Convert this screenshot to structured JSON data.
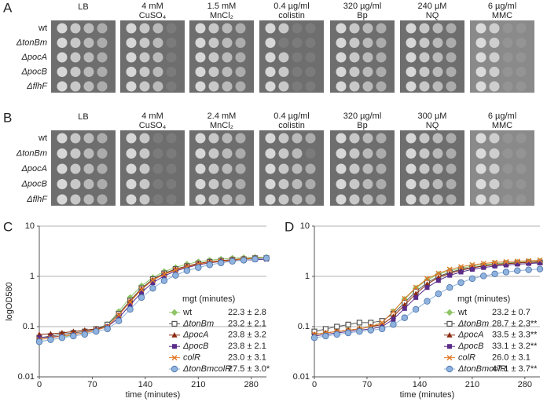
{
  "plates": [
    {
      "panel": "A",
      "columns": [
        [
          "LB"
        ],
        [
          "4 mM",
          "CuSO₄"
        ],
        [
          "1.5 mM",
          "MnCl₂"
        ],
        [
          "0.4 µg/ml",
          "colistin"
        ],
        [
          "320 µg/ml",
          "Bp"
        ],
        [
          "240 µM",
          "NQ"
        ],
        [
          "6 µg/ml",
          "MMC"
        ]
      ],
      "rows": [
        "wt",
        "ΔtonBm",
        "ΔpocA",
        "ΔpocB",
        "ΔflhF"
      ]
    },
    {
      "panel": "B",
      "columns": [
        [
          "LB"
        ],
        [
          "4 mM",
          "CuSO₄"
        ],
        [
          "2.4 mM",
          "MnCl₂"
        ],
        [
          "0.4 µg/ml",
          "colistin"
        ],
        [
          "320 µg/ml",
          "Bp"
        ],
        [
          "300 µM",
          "NQ"
        ],
        [
          "6 µg/ml",
          "MMC"
        ]
      ],
      "rows": [
        "wt",
        "ΔtonBm",
        "ΔpocA",
        "ΔpocB",
        "ΔflhF"
      ]
    }
  ],
  "chart_data": [
    {
      "type": "line",
      "panel": "C",
      "ylabel": "logOD580",
      "xlabel": "time (minutes)",
      "legend_title": "mgt (minutes)",
      "log_y": true,
      "grid": true,
      "xlim": [
        0,
        300
      ],
      "xticks": [
        0,
        70,
        140,
        210,
        280
      ],
      "ylim": [
        0.01,
        10
      ],
      "yticks": [
        0.01,
        0.1,
        1,
        10
      ],
      "x": [
        0,
        15,
        30,
        45,
        60,
        75,
        90,
        105,
        120,
        135,
        150,
        165,
        180,
        195,
        210,
        225,
        240,
        255,
        270,
        285,
        300
      ],
      "series": [
        {
          "name": "wt",
          "mgt": "22.3 ± 2.8",
          "color": "#8fc465",
          "marker": "diamond",
          "values": [
            0.05,
            0.055,
            0.06,
            0.07,
            0.075,
            0.085,
            0.11,
            0.2,
            0.38,
            0.65,
            0.95,
            1.25,
            1.5,
            1.75,
            1.95,
            2.1,
            2.2,
            2.3,
            2.35,
            2.4,
            2.4
          ]
        },
        {
          "name": "ΔtonBm",
          "mgt": "23.2 ± 2.1",
          "color": "#555555",
          "marker": "square-open",
          "values": [
            0.06,
            0.065,
            0.07,
            0.075,
            0.08,
            0.09,
            0.11,
            0.18,
            0.33,
            0.58,
            0.88,
            1.15,
            1.4,
            1.6,
            1.8,
            1.95,
            2.05,
            2.15,
            2.2,
            2.3,
            2.3
          ]
        },
        {
          "name": "ΔpocA",
          "mgt": "23.8 ± 3.2",
          "color": "#8b2a0e",
          "marker": "triangle",
          "values": [
            0.07,
            0.072,
            0.075,
            0.08,
            0.085,
            0.09,
            0.1,
            0.17,
            0.32,
            0.56,
            0.85,
            1.12,
            1.38,
            1.6,
            1.8,
            1.95,
            2.05,
            2.15,
            2.25,
            2.3,
            2.3
          ]
        },
        {
          "name": "ΔpocB",
          "mgt": "23.8 ± 2.1",
          "color": "#5b2c8a",
          "marker": "square",
          "values": [
            0.06,
            0.062,
            0.065,
            0.07,
            0.075,
            0.085,
            0.1,
            0.15,
            0.27,
            0.48,
            0.75,
            1.02,
            1.28,
            1.5,
            1.7,
            1.85,
            1.98,
            2.05,
            2.1,
            2.15,
            2.2
          ]
        },
        {
          "name": "colR",
          "mgt": "23.0 ± 3.1",
          "color": "#e07b2a",
          "marker": "cross",
          "values": [
            0.055,
            0.06,
            0.065,
            0.07,
            0.075,
            0.085,
            0.1,
            0.17,
            0.31,
            0.55,
            0.84,
            1.1,
            1.35,
            1.55,
            1.75,
            1.9,
            2.0,
            2.1,
            2.2,
            2.25,
            2.3
          ]
        },
        {
          "name": "ΔtonBmcolR",
          "mgt": "27.5 ± 3.0*",
          "color": "#8fb3de",
          "marker": "circle",
          "values": [
            0.05,
            0.055,
            0.06,
            0.065,
            0.07,
            0.08,
            0.09,
            0.13,
            0.22,
            0.38,
            0.58,
            0.82,
            1.05,
            1.3,
            1.5,
            1.7,
            1.85,
            2.0,
            2.1,
            2.2,
            2.3
          ]
        }
      ]
    },
    {
      "type": "line",
      "panel": "D",
      "xlabel": "time (minutes)",
      "legend_title": "mgt (minutes)",
      "log_y": true,
      "grid": true,
      "xlim": [
        0,
        300
      ],
      "xticks": [
        0,
        70,
        140,
        210,
        280
      ],
      "ylim": [
        0.01,
        10
      ],
      "yticks": [
        0.01,
        0.1,
        1,
        10
      ],
      "x": [
        0,
        15,
        30,
        45,
        60,
        75,
        90,
        105,
        120,
        135,
        150,
        165,
        180,
        195,
        210,
        225,
        240,
        255,
        270,
        285,
        300
      ],
      "series": [
        {
          "name": "wt",
          "mgt": "23.2 ± 0.7",
          "color": "#8fc465",
          "marker": "diamond",
          "values": [
            0.07,
            0.075,
            0.08,
            0.085,
            0.09,
            0.1,
            0.12,
            0.2,
            0.35,
            0.58,
            0.85,
            1.1,
            1.3,
            1.45,
            1.6,
            1.7,
            1.8,
            1.85,
            1.9,
            1.95,
            2.0
          ]
        },
        {
          "name": "ΔtonBm",
          "mgt": "28.7 ± 2.3**",
          "color": "#555555",
          "marker": "square-open",
          "values": [
            0.08,
            0.09,
            0.1,
            0.11,
            0.12,
            0.12,
            0.13,
            0.18,
            0.3,
            0.5,
            0.75,
            1.0,
            1.2,
            1.38,
            1.5,
            1.62,
            1.72,
            1.8,
            1.85,
            1.9,
            1.9
          ]
        },
        {
          "name": "ΔpocA",
          "mgt": "33.5 ± 3.3**",
          "color": "#8b2a0e",
          "marker": "triangle",
          "values": [
            0.07,
            0.075,
            0.08,
            0.085,
            0.09,
            0.1,
            0.11,
            0.16,
            0.27,
            0.45,
            0.7,
            0.95,
            1.15,
            1.33,
            1.48,
            1.6,
            1.7,
            1.78,
            1.85,
            1.9,
            1.95
          ]
        },
        {
          "name": "ΔpocB",
          "mgt": "33.1 ± 3.2**",
          "color": "#5b2c8a",
          "marker": "square",
          "values": [
            0.065,
            0.07,
            0.075,
            0.08,
            0.085,
            0.09,
            0.1,
            0.14,
            0.23,
            0.38,
            0.6,
            0.83,
            1.05,
            1.22,
            1.38,
            1.5,
            1.6,
            1.68,
            1.75,
            1.8,
            1.85
          ]
        },
        {
          "name": "colR",
          "mgt": "26.0 ± 3.1",
          "color": "#e07b2a",
          "marker": "cross",
          "values": [
            0.07,
            0.075,
            0.08,
            0.085,
            0.09,
            0.1,
            0.12,
            0.2,
            0.36,
            0.6,
            0.9,
            1.15,
            1.38,
            1.55,
            1.7,
            1.8,
            1.9,
            1.95,
            2.0,
            2.05,
            2.1
          ]
        },
        {
          "name": "ΔtonBmcolR",
          "mgt": "47.1 ± 3.7**",
          "color": "#8fb3de",
          "marker": "circle",
          "values": [
            0.06,
            0.065,
            0.07,
            0.075,
            0.08,
            0.085,
            0.09,
            0.11,
            0.15,
            0.22,
            0.32,
            0.45,
            0.6,
            0.75,
            0.9,
            1.02,
            1.12,
            1.22,
            1.3,
            1.35,
            1.4
          ]
        }
      ]
    }
  ]
}
